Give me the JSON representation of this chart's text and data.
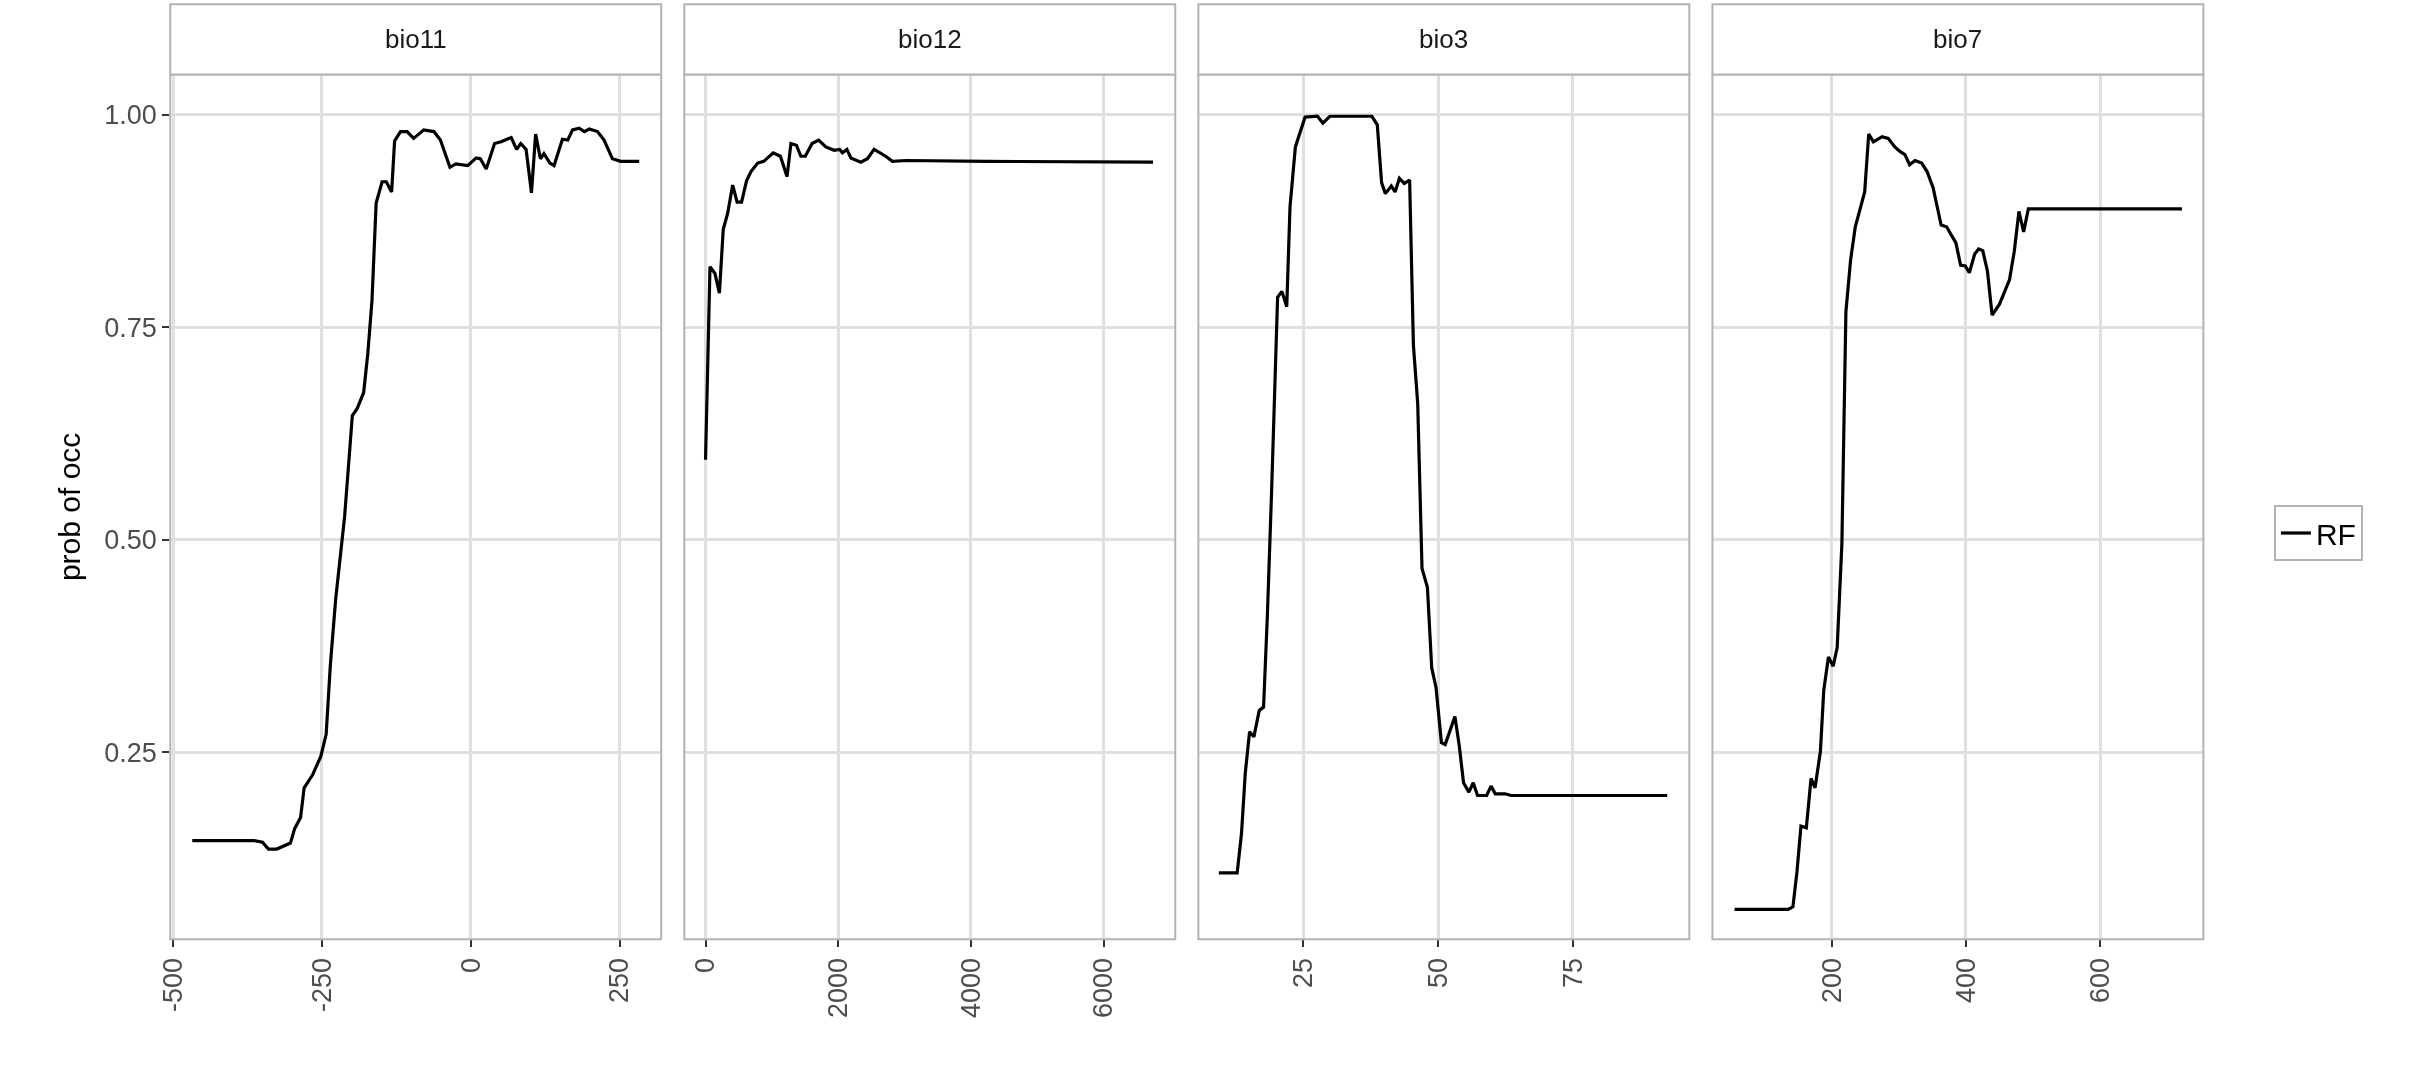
{
  "chart_data": [
    {
      "type": "line",
      "title": "bio11",
      "ylabel": "prob of occ",
      "grid": true,
      "line_style": "solid",
      "x": [
        -468,
        -364,
        -350,
        -340,
        -326,
        -303,
        -296,
        -286,
        -280,
        -266,
        -252,
        -243,
        -236,
        -227,
        -212,
        -199,
        -191,
        -180,
        -173,
        -166,
        -159,
        -149,
        -142,
        -133,
        -128,
        -118,
        -107,
        -96,
        -79,
        -62,
        -51,
        -35,
        -25,
        -5,
        9,
        16,
        26,
        40,
        51,
        68,
        77,
        84,
        93,
        102,
        109,
        117,
        123,
        133,
        140,
        154,
        163,
        171,
        182,
        191,
        199,
        213,
        224,
        238,
        252,
        283
      ],
      "series": [
        {
          "color": "#000000",
          "values": [
            0.146,
            0.146,
            0.144,
            0.136,
            0.136,
            0.143,
            0.16,
            0.173,
            0.208,
            0.223,
            0.245,
            0.271,
            0.352,
            0.43,
            0.527,
            0.646,
            0.654,
            0.673,
            0.719,
            0.781,
            0.896,
            0.921,
            0.921,
            0.909,
            0.969,
            0.98,
            0.98,
            0.972,
            0.982,
            0.98,
            0.97,
            0.938,
            0.942,
            0.94,
            0.949,
            0.948,
            0.936,
            0.966,
            0.968,
            0.973,
            0.959,
            0.966,
            0.959,
            0.908,
            0.977,
            0.948,
            0.954,
            0.943,
            0.94,
            0.971,
            0.97,
            0.982,
            0.984,
            0.98,
            0.983,
            0.98,
            0.97,
            0.948,
            0.945,
            0.945
          ]
        }
      ],
      "xlim": [
        -505,
        320
      ],
      "xticks": [
        -500,
        -250,
        0,
        250
      ],
      "ylim": [
        0.03,
        1.047
      ],
      "yticks": [
        {
          "value": 0.25,
          "label": "0.25"
        },
        {
          "value": 0.5,
          "label": "0.50"
        },
        {
          "value": 0.75,
          "label": "0.75"
        },
        {
          "value": 1.0,
          "label": "1.00"
        }
      ]
    },
    {
      "type": "line",
      "title": "bio12",
      "grid": true,
      "line_style": "solid",
      "tick_labels": "x",
      "x": [
        0,
        67,
        142,
        209,
        267,
        334,
        409,
        476,
        543,
        618,
        685,
        786,
        877,
        1020,
        1128,
        1229,
        1287,
        1370,
        1437,
        1504,
        1605,
        1705,
        1813,
        1939,
        2022,
        2064,
        2131,
        2190,
        2340,
        2440,
        2541,
        2716,
        2816,
        3025,
        4237,
        6744
      ],
      "series": [
        {
          "color": "#000000",
          "values": [
            0.594,
            0.821,
            0.813,
            0.79,
            0.865,
            0.884,
            0.917,
            0.897,
            0.897,
            0.922,
            0.933,
            0.943,
            0.945,
            0.955,
            0.951,
            0.927,
            0.966,
            0.964,
            0.951,
            0.951,
            0.966,
            0.97,
            0.962,
            0.958,
            0.959,
            0.955,
            0.959,
            0.949,
            0.944,
            0.948,
            0.959,
            0.951,
            0.945,
            0.946,
            0.945,
            0.944
          ]
        }
      ],
      "xlim": [
        -320,
        7080
      ],
      "xticks": [
        0,
        2000,
        4000,
        6000
      ],
      "ylim": [
        0.03,
        1.047
      ],
      "yticks": [
        {
          "value": 0.25,
          "label": null
        },
        {
          "value": 0.5,
          "label": null
        },
        {
          "value": 0.75,
          "label": null
        },
        {
          "value": 1.0,
          "label": null
        }
      ]
    },
    {
      "type": "line",
      "title": "bio3",
      "grid": true,
      "line_style": "solid",
      "tick_labels": "x",
      "x": [
        9.3,
        12.7,
        13.5,
        14.2,
        15.0,
        15.8,
        16.8,
        17.6,
        18.3,
        19.1,
        20.2,
        21.0,
        21.9,
        22.5,
        23.5,
        25.3,
        27.6,
        28.6,
        29.9,
        37.7,
        38.7,
        39.5,
        40.2,
        41.3,
        42.0,
        42.8,
        43.7,
        44.7,
        45.4,
        46.2,
        47.0,
        48.0,
        48.8,
        49.6,
        50.6,
        51.3,
        53.1,
        53.9,
        54.7,
        55.7,
        56.5,
        57.3,
        59.0,
        59.8,
        60.6,
        62.4,
        63.5,
        92.5
      ],
      "series": [
        {
          "color": "#000000",
          "values": [
            0.108,
            0.108,
            0.154,
            0.225,
            0.274,
            0.268,
            0.299,
            0.303,
            0.41,
            0.559,
            0.785,
            0.792,
            0.774,
            0.891,
            0.962,
            0.997,
            0.998,
            0.99,
            0.998,
            0.998,
            0.988,
            0.92,
            0.907,
            0.916,
            0.909,
            0.925,
            0.919,
            0.923,
            0.729,
            0.66,
            0.466,
            0.444,
            0.349,
            0.326,
            0.261,
            0.259,
            0.292,
            0.258,
            0.214,
            0.203,
            0.214,
            0.199,
            0.199,
            0.21,
            0.201,
            0.201,
            0.199,
            0.199
          ]
        }
      ],
      "xlim": [
        5.5,
        96.6
      ],
      "xticks": [
        25,
        50,
        75
      ],
      "ylim": [
        0.03,
        1.047
      ],
      "yticks": [
        {
          "value": 0.25,
          "label": null
        },
        {
          "value": 0.5,
          "label": null
        },
        {
          "value": 0.75,
          "label": null
        },
        {
          "value": 1.0,
          "label": null
        }
      ]
    },
    {
      "type": "line",
      "title": "bio7",
      "grid": true,
      "line_style": "solid",
      "tick_labels": "x",
      "legend": "right",
      "x": [
        55,
        135,
        142,
        148,
        154,
        162,
        169,
        175,
        183,
        188,
        195,
        202,
        208,
        215,
        221,
        228,
        235,
        249,
        255,
        262,
        275,
        284,
        294,
        301,
        309,
        316,
        324,
        334,
        342,
        351,
        363,
        371,
        385,
        392,
        399,
        405,
        413,
        419,
        425,
        432,
        439,
        450,
        465,
        472,
        479,
        486,
        493,
        722
      ],
      "series": [
        {
          "name": "RF",
          "color": "#000000",
          "values": [
            0.065,
            0.065,
            0.068,
            0.109,
            0.163,
            0.161,
            0.219,
            0.208,
            0.251,
            0.323,
            0.362,
            0.351,
            0.373,
            0.495,
            0.768,
            0.829,
            0.868,
            0.909,
            0.977,
            0.968,
            0.974,
            0.972,
            0.962,
            0.957,
            0.953,
            0.941,
            0.946,
            0.943,
            0.933,
            0.914,
            0.87,
            0.868,
            0.849,
            0.823,
            0.822,
            0.814,
            0.836,
            0.842,
            0.84,
            0.816,
            0.764,
            0.777,
            0.806,
            0.839,
            0.886,
            0.862,
            0.889,
            0.889
          ]
        }
      ],
      "xlim": [
        22,
        754
      ],
      "xticks": [
        200,
        400,
        600
      ],
      "ylim": [
        0.03,
        1.047
      ],
      "yticks": [
        {
          "value": 0.25,
          "label": null
        },
        {
          "value": 0.5,
          "label": null
        },
        {
          "value": 0.75,
          "label": null
        },
        {
          "value": 1.0,
          "label": null
        }
      ]
    }
  ]
}
